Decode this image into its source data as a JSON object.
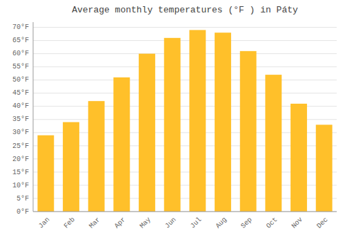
{
  "chart_data": {
    "type": "bar",
    "title": "Average monthly temperatures (°F ) in Páty",
    "categories": [
      "Jan",
      "Feb",
      "Mar",
      "Apr",
      "May",
      "Jun",
      "Jul",
      "Aug",
      "Sep",
      "Oct",
      "Nov",
      "Dec"
    ],
    "values": [
      29,
      34,
      42,
      51,
      60,
      66,
      69,
      68,
      61,
      52,
      41,
      33
    ],
    "color": "#FFC02A",
    "ylim": [
      0,
      72
    ],
    "yticks": [
      {
        "value": 0,
        "label": "0°F"
      },
      {
        "value": 5,
        "label": "5°F"
      },
      {
        "value": 10,
        "label": "10°F"
      },
      {
        "value": 15,
        "label": "15°F"
      },
      {
        "value": 20,
        "label": "20°F"
      },
      {
        "value": 25,
        "label": "25°F"
      },
      {
        "value": 30,
        "label": "30°F"
      },
      {
        "value": 35,
        "label": "35°F"
      },
      {
        "value": 40,
        "label": "40°F"
      },
      {
        "value": 45,
        "label": "45°F"
      },
      {
        "value": 50,
        "label": "50°F"
      },
      {
        "value": 55,
        "label": "55°F"
      },
      {
        "value": 60,
        "label": "60°F"
      },
      {
        "value": 65,
        "label": "65°F"
      },
      {
        "value": 70,
        "label": "70°F"
      }
    ],
    "grid": true
  }
}
